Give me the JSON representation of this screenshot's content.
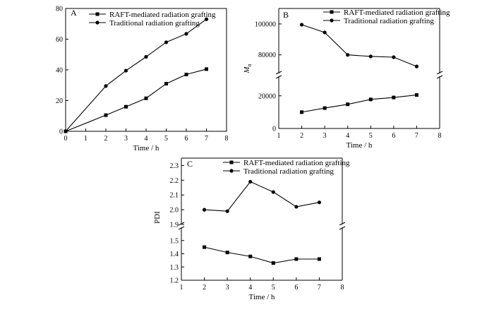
{
  "chart_data": [
    {
      "type": "line",
      "panel_label": "A",
      "xlabel": "Time / h",
      "ylabel": "",
      "xlim": [
        0,
        8
      ],
      "ylim": [
        0,
        80
      ],
      "xticks": [
        0,
        1,
        2,
        3,
        4,
        5,
        6,
        7,
        8
      ],
      "yticks": [
        0,
        20,
        40,
        60,
        80
      ],
      "legend_position": "top-left",
      "grid": false,
      "series": [
        {
          "name": "RAFT-mediated radiation grafting",
          "marker": "square",
          "x": [
            0,
            2,
            3,
            4,
            5,
            6,
            7
          ],
          "y": [
            0,
            10.5,
            16,
            21.5,
            31,
            37,
            40.5
          ]
        },
        {
          "name": "Traditional radiation grafting",
          "marker": "circle",
          "x": [
            0,
            2,
            3,
            4,
            5,
            6,
            7
          ],
          "y": [
            0,
            29.5,
            39.5,
            48.5,
            58,
            63.5,
            73
          ]
        }
      ]
    },
    {
      "type": "line",
      "panel_label": "B",
      "xlabel": "Time / h",
      "ylabel": "Mn",
      "xlim": [
        1,
        8
      ],
      "xticks": [
        1,
        2,
        3,
        4,
        5,
        6,
        7,
        8
      ],
      "broken_y_axis": true,
      "upper_ylim": [
        68000,
        110000
      ],
      "upper_yticks": [
        80000,
        100000
      ],
      "lower_ylim": [
        0,
        32000
      ],
      "lower_yticks": [
        0,
        20000
      ],
      "legend_position": "top-right",
      "grid": false,
      "series": [
        {
          "name": "RAFT-mediated radiation grafting",
          "marker": "square",
          "x": [
            2,
            3,
            4,
            5,
            6,
            7
          ],
          "y": [
            10000,
            12500,
            14800,
            17800,
            19000,
            20500
          ]
        },
        {
          "name": "Traditional radiation grafting",
          "marker": "circle",
          "x": [
            2,
            3,
            4,
            5,
            6,
            7
          ],
          "y": [
            99500,
            94500,
            80000,
            79000,
            78500,
            72500
          ]
        }
      ]
    },
    {
      "type": "line",
      "panel_label": "C",
      "xlabel": "Time / h",
      "ylabel": "PDI",
      "xlim": [
        1,
        8
      ],
      "xticks": [
        1,
        2,
        3,
        4,
        5,
        6,
        7,
        8
      ],
      "broken_y_axis": true,
      "upper_ylim": [
        1.9,
        2.35
      ],
      "upper_yticks": [
        1.9,
        2.0,
        2.1,
        2.2,
        2.3
      ],
      "lower_ylim": [
        1.2,
        1.6
      ],
      "lower_yticks": [
        1.2,
        1.3,
        1.4,
        1.5
      ],
      "legend_position": "top-right",
      "grid": false,
      "series": [
        {
          "name": "RAFT-mediated radiation grafting",
          "marker": "square",
          "x": [
            2,
            3,
            4,
            5,
            6,
            7
          ],
          "y": [
            1.45,
            1.41,
            1.38,
            1.33,
            1.36,
            1.36
          ]
        },
        {
          "name": "Traditional radiation grafting",
          "marker": "circle",
          "x": [
            2,
            3,
            4,
            5,
            6,
            7
          ],
          "y": [
            2.0,
            1.99,
            2.19,
            2.12,
            2.02,
            2.05
          ]
        }
      ]
    }
  ]
}
